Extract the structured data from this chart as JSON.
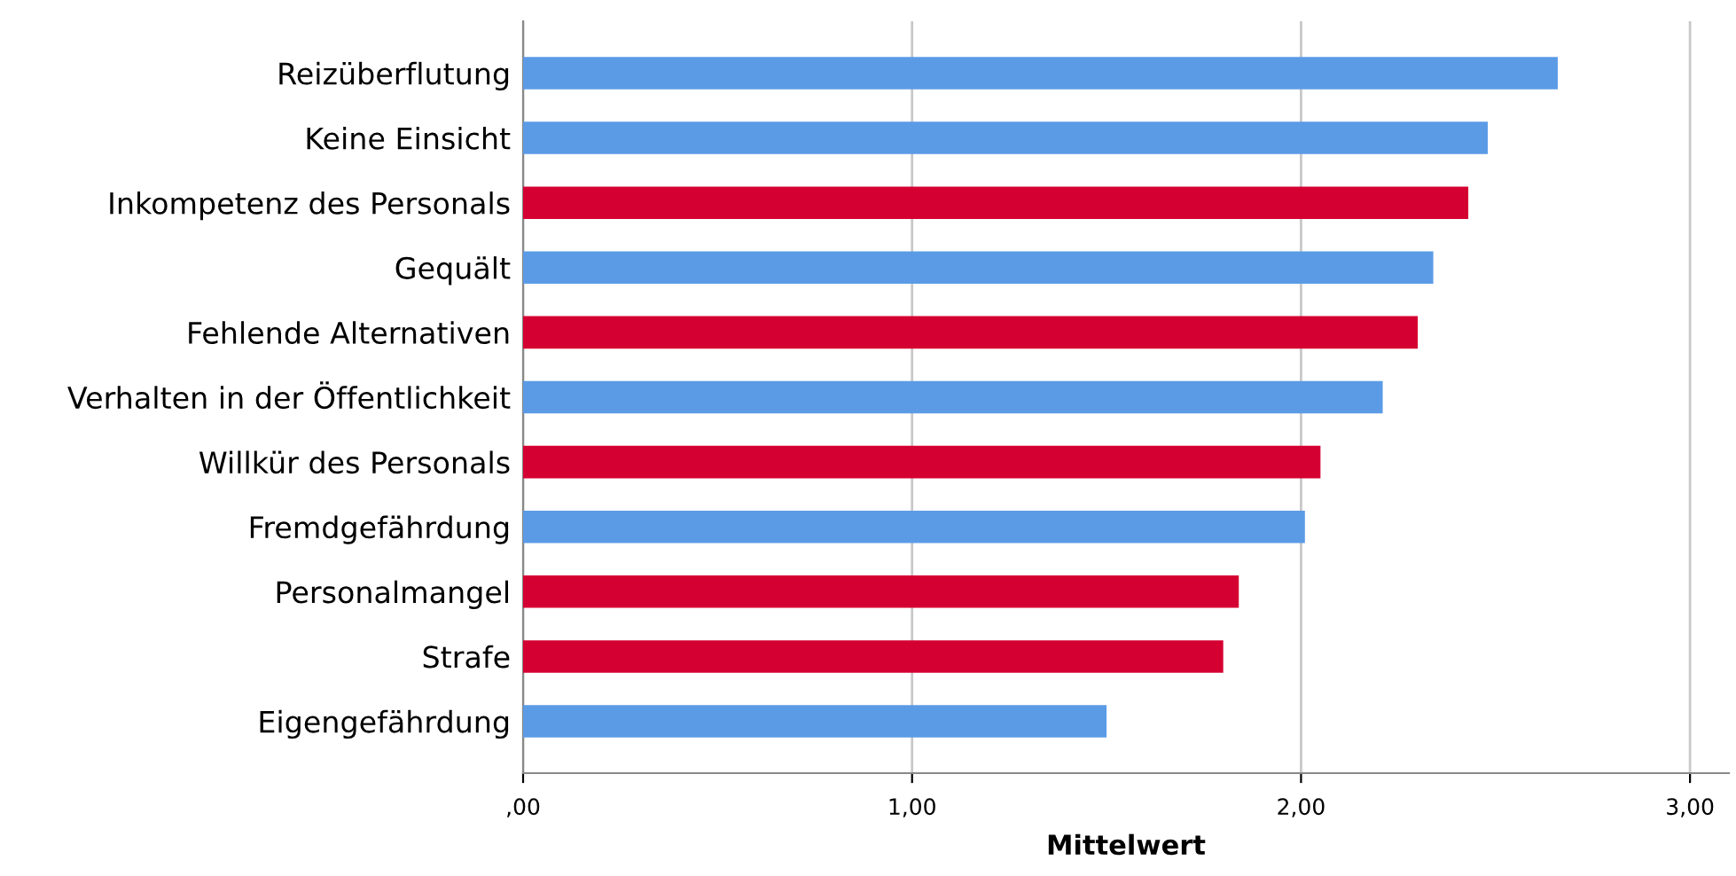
{
  "chart_data": {
    "type": "bar",
    "orientation": "horizontal",
    "xlabel": "Mittelwert",
    "categories": [
      "Reizüberflutung",
      "Keine Einsicht",
      "Inkompetenz des Personals",
      "Gequält",
      "Fehlende Alternativen",
      "Verhalten in der Öffentlichkeit",
      "Willkür des Personals",
      "Fremdgefährdung",
      "Personalmangel",
      "Strafe",
      "Eigengefährdung"
    ],
    "values": [
      2.66,
      2.48,
      2.43,
      2.34,
      2.3,
      2.21,
      2.05,
      2.01,
      1.84,
      1.8,
      1.5
    ],
    "colors": [
      "#5b9be6",
      "#5b9be6",
      "#d50032",
      "#5b9be6",
      "#d50032",
      "#5b9be6",
      "#d50032",
      "#5b9be6",
      "#d50032",
      "#d50032",
      "#5b9be6"
    ],
    "xlim": [
      0,
      3.1
    ],
    "xticks": [
      {
        "value": 0,
        "label": ",00"
      },
      {
        "value": 1,
        "label": "1,00"
      },
      {
        "value": 2,
        "label": "2,00"
      },
      {
        "value": 3,
        "label": "3,00"
      }
    ],
    "grid": "x",
    "legend": false
  }
}
